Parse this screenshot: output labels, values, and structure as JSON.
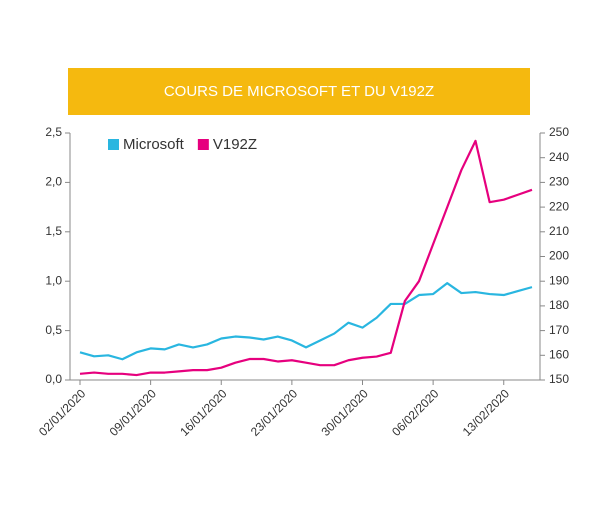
{
  "chart_data": {
    "type": "line",
    "title": "COURS DE MICROSOFT ET DU V192Z",
    "categories": [
      "02/01/2020",
      null,
      null,
      null,
      null,
      "09/01/2020",
      null,
      null,
      null,
      null,
      "16/01/2020",
      null,
      null,
      null,
      null,
      "23/01/2020",
      null,
      null,
      null,
      null,
      "30/01/2020",
      null,
      null,
      null,
      null,
      "06/02/2020",
      null,
      null,
      null,
      null,
      "13/02/2020",
      null,
      null
    ],
    "series": [
      {
        "name": "Microsoft",
        "color": "#29b6e0",
        "axis": "y",
        "values": [
          0.28,
          0.24,
          0.25,
          0.21,
          0.28,
          0.32,
          0.31,
          0.36,
          0.33,
          0.36,
          0.42,
          0.44,
          0.43,
          0.41,
          0.44,
          0.4,
          0.33,
          0.4,
          0.47,
          0.58,
          0.53,
          0.63,
          0.77,
          0.77,
          0.86,
          0.87,
          0.98,
          0.88,
          0.89,
          0.87,
          0.86,
          0.9,
          0.94
        ]
      },
      {
        "name": "V192Z",
        "color": "#e6007e",
        "axis": "y2",
        "values": [
          152.5,
          153,
          152.5,
          152.5,
          152,
          153,
          153,
          153.5,
          154,
          154,
          155,
          157,
          158.5,
          158.5,
          157.5,
          158,
          157,
          156,
          156,
          158,
          159,
          159.5,
          161,
          182,
          190,
          205,
          220,
          235,
          246.8,
          222,
          223,
          225,
          227
        ]
      }
    ],
    "ylim": [
      0,
      2.5
    ],
    "yticks": [
      {
        "value": 0,
        "label": "0,0"
      },
      {
        "value": 0.5,
        "label": "0,5"
      },
      {
        "value": 1,
        "label": "1,0"
      },
      {
        "value": 1.5,
        "label": "1,5"
      },
      {
        "value": 2,
        "label": "2,0"
      },
      {
        "value": 2.5,
        "label": "2,5"
      }
    ],
    "y2lim": [
      150,
      250
    ],
    "y2ticks": [
      150,
      160,
      170,
      180,
      190,
      200,
      210,
      220,
      230,
      240,
      250
    ],
    "legend": "top-left"
  }
}
